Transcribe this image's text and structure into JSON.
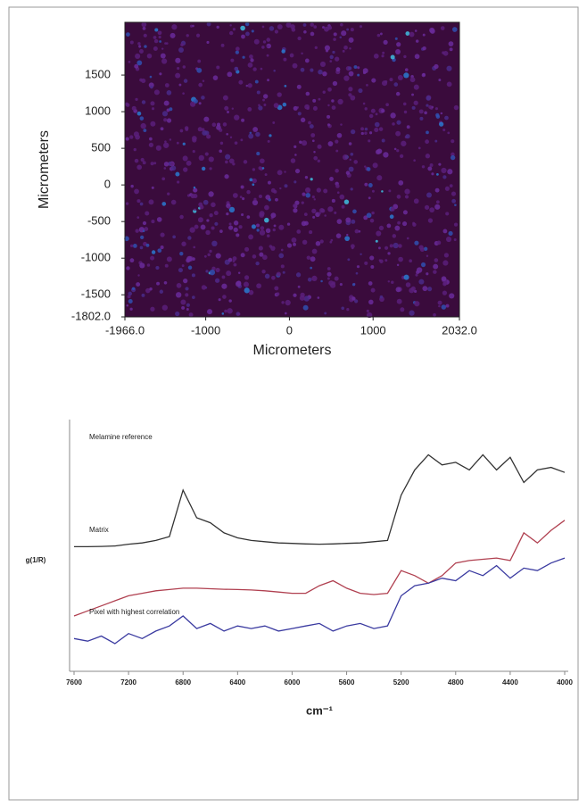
{
  "chart_data": [
    {
      "type": "heatmap",
      "xlabel": "Micrometers",
      "ylabel": "Micrometers",
      "xlim": [
        -1966,
        2032
      ],
      "ylim": [
        -1802,
        2220
      ],
      "xticks": [
        {
          "value": -1966,
          "label": "-1966.0"
        },
        -1000,
        0,
        1000,
        {
          "value": 2032,
          "label": "2032.0"
        }
      ],
      "yticks": [
        {
          "value": -1802,
          "label": "-1802.0"
        },
        -1500,
        -1000,
        -500,
        0,
        500,
        1000,
        1500
      ]
    },
    {
      "type": "line",
      "xlabel": "cm⁻¹",
      "ylabel": "g(1/R)",
      "x": [
        7600,
        7500,
        7400,
        7300,
        7200,
        7100,
        7000,
        6900,
        6800,
        6700,
        6600,
        6500,
        6400,
        6300,
        6200,
        6100,
        6000,
        5900,
        5800,
        5700,
        5600,
        5500,
        5400,
        5300,
        5200,
        5100,
        5000,
        4900,
        4800,
        4700,
        4600,
        4500,
        4400,
        4300,
        4200,
        4100,
        4000
      ],
      "xlim": [
        7600,
        4000
      ],
      "ylim": [
        0,
        100
      ],
      "xticks": [
        7600,
        7200,
        6800,
        6400,
        6000,
        5600,
        5200,
        4800,
        4400,
        4000
      ],
      "series": [
        {
          "name": "Melamine reference",
          "color": "#333333",
          "values": [
            49.5,
            49.5,
            49.6,
            49.8,
            50.5,
            51,
            52,
            53.5,
            72,
            61,
            59,
            55,
            53,
            52,
            51.5,
            51,
            50.8,
            50.6,
            50.5,
            50.6,
            50.8,
            51,
            51.5,
            52,
            70,
            80,
            86,
            82,
            83,
            80,
            86,
            80,
            85,
            75,
            80,
            81,
            79
          ]
        },
        {
          "name": "Matrix",
          "color": "#b04050",
          "values": [
            22,
            24,
            26,
            28,
            30,
            31,
            32,
            32.5,
            33,
            33,
            32.8,
            32.6,
            32.5,
            32.3,
            32,
            31.5,
            31,
            31,
            34,
            36,
            33,
            31,
            30.5,
            31,
            40,
            38,
            35,
            38,
            43,
            44,
            44.5,
            45,
            44,
            55,
            51,
            56,
            60
          ]
        },
        {
          "name": "Pixel with highest correlation",
          "color": "#3a3aa0",
          "values": [
            13,
            12,
            14,
            11,
            15,
            13,
            16,
            18,
            22,
            17,
            19,
            16,
            18,
            17,
            18,
            16,
            17,
            18,
            19,
            16,
            18,
            19,
            17,
            18,
            30,
            34,
            35,
            37,
            36,
            40,
            38,
            42,
            37,
            41,
            40,
            43,
            45
          ]
        }
      ]
    }
  ]
}
